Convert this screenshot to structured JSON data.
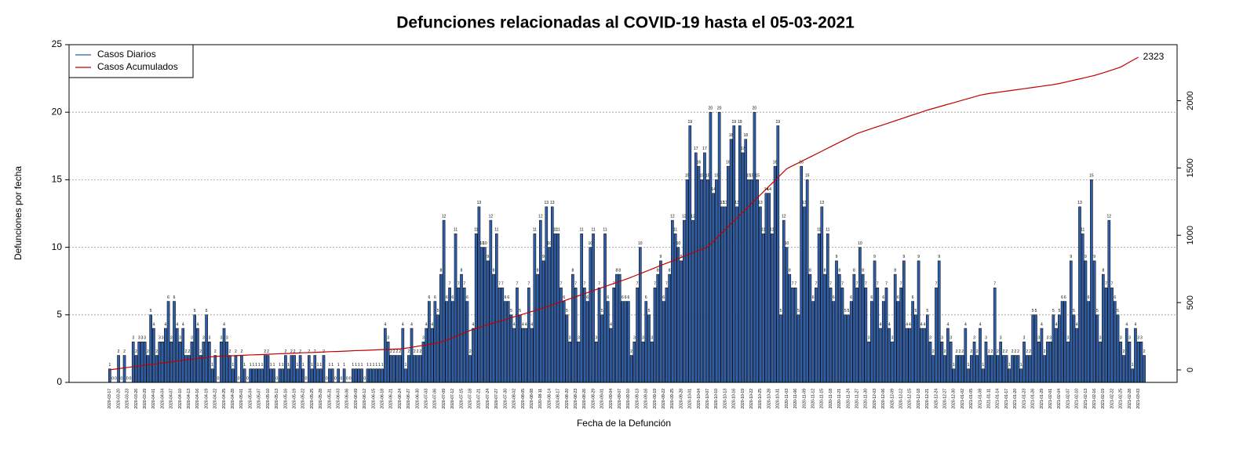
{
  "chart_data": {
    "type": "bar",
    "title": "Defunciones relacionadas al COVID-19 hasta el 05-03-2021",
    "x_label": "Fecha de la Defunción",
    "y_label": "Defunciones por fecha",
    "ylim": [
      0,
      25
    ],
    "yticks": [
      0,
      5,
      10,
      15,
      20,
      25
    ],
    "y2lim": [
      -93,
      2416
    ],
    "y2ticks": [
      0,
      500,
      1000,
      1500,
      2000
    ],
    "grid": true,
    "legend": "top-left",
    "categories": [
      "2020-03-17",
      null,
      null,
      "2020-03-20",
      null,
      null,
      "2020-03-23",
      null,
      null,
      "2020-03-26",
      null,
      null,
      "2020-03-29",
      null,
      null,
      "2020-04-01",
      null,
      null,
      "2020-04-04",
      null,
      null,
      "2020-04-07",
      null,
      null,
      "2020-04-10",
      null,
      null,
      "2020-04-13",
      null,
      null,
      "2020-04-16",
      null,
      null,
      "2020-04-19",
      null,
      null,
      "2020-04-22",
      null,
      null,
      "2020-04-25",
      null,
      null,
      "2020-04-28",
      null,
      null,
      "2020-05-01",
      null,
      null,
      "2020-05-04",
      null,
      null,
      "2020-05-07",
      null,
      null,
      "2020-05-10",
      null,
      null,
      "2020-05-13",
      null,
      null,
      "2020-05-16",
      null,
      null,
      "2020-05-19",
      null,
      null,
      "2020-05-22",
      null,
      null,
      "2020-05-25",
      null,
      null,
      "2020-05-28",
      null,
      null,
      "2020-05-31",
      null,
      null,
      "2020-06-03",
      null,
      null,
      "2020-06-06",
      null,
      null,
      "2020-06-09",
      null,
      null,
      "2020-06-12",
      null,
      null,
      "2020-06-15",
      null,
      null,
      "2020-06-18",
      null,
      null,
      "2020-06-21",
      null,
      null,
      "2020-06-24",
      null,
      null,
      "2020-06-27",
      null,
      null,
      "2020-06-30",
      null,
      null,
      "2020-07-03",
      null,
      null,
      "2020-07-06",
      null,
      null,
      "2020-07-09",
      null,
      null,
      "2020-07-12",
      null,
      null,
      "2020-07-15",
      null,
      null,
      "2020-07-18",
      null,
      null,
      "2020-07-21",
      null,
      null,
      "2020-07-24",
      null,
      null,
      "2020-07-27",
      null,
      null,
      "2020-07-30",
      null,
      null,
      "2020-08-02",
      null,
      null,
      "2020-08-05",
      null,
      null,
      "2020-08-08",
      null,
      null,
      "2020-08-11",
      null,
      null,
      "2020-08-14",
      null,
      null,
      "2020-08-17",
      null,
      null,
      "2020-08-20",
      null,
      null,
      "2020-08-23",
      null,
      null,
      "2020-08-26",
      null,
      null,
      "2020-08-29",
      null,
      null,
      "2020-09-01",
      null,
      null,
      "2020-09-04",
      null,
      null,
      "2020-09-07",
      null,
      null,
      "2020-09-10",
      null,
      null,
      "2020-09-13",
      null,
      null,
      "2020-09-16",
      null,
      null,
      "2020-09-19",
      null,
      null,
      "2020-09-22",
      null,
      null,
      "2020-09-25",
      null,
      null,
      "2020-09-28",
      null,
      null,
      "2020-10-01",
      null,
      null,
      "2020-10-04",
      null,
      null,
      "2020-10-07",
      null,
      null,
      "2020-10-10",
      null,
      null,
      "2020-10-13",
      null,
      null,
      "2020-10-16",
      null,
      null,
      "2020-10-19",
      null,
      null,
      "2020-10-22",
      null,
      null,
      "2020-10-25",
      null,
      null,
      "2020-10-28",
      null,
      null,
      "2020-10-31",
      null,
      null,
      "2020-11-03",
      null,
      null,
      "2020-11-06",
      null,
      null,
      "2020-11-09",
      null,
      null,
      "2020-11-12",
      null,
      null,
      "2020-11-15",
      null,
      null,
      "2020-11-18",
      null,
      null,
      "2020-11-21",
      null,
      null,
      "2020-11-24",
      null,
      null,
      "2020-11-27",
      null,
      null,
      "2020-11-30",
      null,
      null,
      "2020-12-03",
      null,
      null,
      "2020-12-06",
      null,
      null,
      "2020-12-09",
      null,
      null,
      "2020-12-12",
      null,
      null,
      "2020-12-15",
      null,
      null,
      "2020-12-18",
      null,
      null,
      "2020-12-21",
      null,
      null,
      "2020-12-24",
      null,
      null,
      "2020-12-27",
      null,
      null,
      "2020-12-30",
      null,
      null,
      "2021-01-02",
      null,
      null,
      "2021-01-05",
      null,
      null,
      "2021-01-08",
      null,
      null,
      "2021-01-11",
      null,
      null,
      "2021-01-14",
      null,
      null,
      "2021-01-17",
      null,
      null,
      "2021-01-20",
      null,
      null,
      "2021-01-23",
      null,
      null,
      "2021-01-26",
      null,
      null,
      "2021-01-29",
      null,
      null,
      "2021-02-01",
      null,
      null,
      "2021-02-04",
      null,
      null,
      "2021-02-07",
      null,
      null,
      "2021-02-10",
      null,
      null,
      "2021-02-13",
      null,
      null,
      "2021-02-16",
      null,
      null,
      "2021-02-19",
      null,
      null,
      "2021-02-22",
      null,
      null,
      "2021-02-25",
      null,
      null,
      "2021-02-28",
      null,
      null,
      "2021-03-03",
      null,
      null
    ],
    "series": [
      {
        "name": "Casos Diarios",
        "color": "#2f5ea8",
        "values": [
          1,
          0,
          0,
          2,
          0,
          2,
          0,
          0,
          3,
          2,
          3,
          3,
          3,
          2,
          5,
          4,
          2,
          3,
          3,
          4,
          6,
          3,
          6,
          4,
          3,
          4,
          2,
          2,
          3,
          5,
          4,
          2,
          3,
          5,
          3,
          1,
          2,
          0,
          3,
          4,
          3,
          2,
          1,
          2,
          0,
          2,
          1,
          0,
          1,
          1,
          1,
          1,
          1,
          2,
          2,
          1,
          1,
          0,
          1,
          1,
          2,
          1,
          2,
          2,
          1,
          2,
          1,
          0,
          2,
          1,
          2,
          1,
          1,
          2,
          0,
          1,
          1,
          0,
          1,
          0,
          1,
          0,
          0,
          1,
          1,
          1,
          1,
          0,
          1,
          1,
          1,
          1,
          1,
          1,
          4,
          3,
          2,
          2,
          2,
          2,
          4,
          1,
          2,
          4,
          2,
          2,
          2,
          3,
          4,
          6,
          4,
          6,
          5,
          8,
          12,
          6,
          7,
          6,
          11,
          7,
          8,
          7,
          6,
          2,
          4,
          11,
          13,
          10,
          10,
          9,
          12,
          8,
          11,
          7,
          7,
          6,
          6,
          5,
          4,
          7,
          5,
          4,
          4,
          7,
          4,
          11,
          8,
          12,
          9,
          13,
          10,
          13,
          11,
          11,
          7,
          6,
          5,
          3,
          8,
          7,
          3,
          11,
          7,
          6,
          10,
          11,
          3,
          7,
          5,
          11,
          6,
          4,
          7,
          8,
          8,
          6,
          6,
          6,
          2,
          3,
          7,
          10,
          3,
          6,
          5,
          3,
          7,
          8,
          9,
          6,
          7,
          8,
          12,
          11,
          10,
          9,
          12,
          15,
          19,
          12,
          17,
          16,
          15,
          17,
          15,
          20,
          14,
          15,
          20,
          13,
          13,
          16,
          18,
          19,
          13,
          19,
          17,
          18,
          15,
          15,
          20,
          15,
          13,
          11,
          14,
          14,
          11,
          16,
          19,
          5,
          12,
          10,
          8,
          7,
          7,
          5,
          16,
          13,
          15,
          8,
          6,
          7,
          11,
          13,
          8,
          11,
          7,
          6,
          9,
          8,
          7,
          5,
          5,
          6,
          8,
          7,
          10,
          8,
          7,
          3,
          6,
          9,
          7,
          4,
          6,
          7,
          4,
          3,
          8,
          6,
          7,
          9,
          4,
          4,
          6,
          5,
          9,
          4,
          4,
          5,
          3,
          2,
          7,
          9,
          3,
          2,
          4,
          3,
          1,
          2,
          2,
          2,
          4,
          1,
          2,
          3,
          2,
          4,
          1,
          3,
          2,
          2,
          7,
          2,
          3,
          2,
          2,
          1,
          2,
          2,
          2,
          1,
          3,
          2,
          2,
          5,
          5,
          3,
          4,
          2,
          3,
          3,
          5,
          4,
          5,
          6,
          6,
          3,
          9,
          5,
          4,
          13,
          11,
          9,
          6,
          15,
          9,
          5,
          3,
          8,
          7,
          12,
          7,
          6,
          5,
          3,
          2,
          4,
          3,
          1,
          4,
          3,
          3,
          2
        ]
      },
      {
        "name": "Casos Acumulados",
        "color": "#c00000",
        "axis": "y2",
        "x": [
          "2020-03-17",
          "2020-03-20",
          "2020-03-23",
          "2020-03-26",
          "2020-03-29",
          "2020-04-01",
          "2020-04-04",
          "2020-04-07",
          "2020-04-10",
          "2020-04-13",
          "2020-04-16",
          "2020-04-19",
          "2020-04-22",
          "2020-04-25",
          "2020-04-28",
          "2020-05-01",
          "2020-05-04",
          "2020-05-07",
          "2020-05-10",
          "2020-05-13",
          "2020-05-16",
          "2020-05-19",
          "2020-05-22",
          "2020-05-25",
          "2020-05-28",
          "2020-05-31",
          "2020-06-03",
          "2020-06-06",
          "2020-06-09",
          "2020-06-12",
          "2020-06-15",
          "2020-06-18",
          "2020-06-21",
          "2020-06-24",
          "2020-06-27",
          "2020-06-30",
          "2020-07-03",
          "2020-07-06",
          "2020-07-09",
          "2020-07-12",
          "2020-07-15",
          "2020-07-18",
          "2020-07-21",
          "2020-07-24",
          "2020-07-27",
          "2020-07-30",
          "2020-08-02",
          "2020-08-05",
          "2020-08-08",
          "2020-08-11",
          "2020-08-14",
          "2020-08-17",
          "2020-08-20",
          "2020-08-23",
          "2020-08-26",
          "2020-08-29",
          "2020-09-01",
          "2020-09-04",
          "2020-09-07",
          "2020-09-10",
          "2020-09-13",
          "2020-09-16",
          "2020-09-19",
          "2020-09-22",
          "2020-09-25",
          "2020-09-28",
          "2020-10-01",
          "2020-10-04",
          "2020-10-07",
          "2020-10-10",
          "2020-10-13",
          "2020-10-16",
          "2020-10-19",
          "2020-10-22",
          "2020-10-25",
          "2020-10-28",
          "2020-10-31",
          "2020-11-03",
          "2020-11-06",
          "2020-11-09",
          "2020-11-12",
          "2020-11-15",
          "2020-11-18",
          "2020-11-21",
          "2020-11-24",
          "2020-11-27",
          "2020-11-30",
          "2020-12-03",
          "2020-12-06",
          "2020-12-09",
          "2020-12-12",
          "2020-12-15",
          "2020-12-18",
          "2020-12-21",
          "2020-12-24",
          "2020-12-27",
          "2020-12-30",
          "2021-01-02",
          "2021-01-05",
          "2021-01-08",
          "2021-01-11",
          "2021-01-14",
          "2021-01-17",
          "2021-01-20",
          "2021-01-23",
          "2021-01-26",
          "2021-01-29",
          "2021-02-01",
          "2021-02-04",
          "2021-02-07",
          "2021-02-10",
          "2021-02-13",
          "2021-02-16",
          "2021-02-19",
          "2021-02-22",
          "2021-02-25",
          "2021-02-28",
          "2021-03-03"
        ],
        "values": [
          1,
          9,
          18,
          26,
          35,
          43,
          51,
          60,
          68,
          77,
          85,
          93,
          100,
          103,
          105,
          108,
          111,
          113,
          116,
          119,
          121,
          124,
          127,
          129,
          132,
          135,
          137,
          140,
          143,
          145,
          148,
          151,
          153,
          156,
          164,
          175,
          185,
          196,
          212,
          239,
          266,
          293,
          315,
          335,
          355,
          374,
          394,
          414,
          434,
          453,
          475,
          498,
          521,
          543,
          566,
          589,
          612,
          634,
          657,
          680,
          706,
          732,
          758,
          784,
          809,
          835,
          861,
          887,
          913,
          978,
          1042,
          1107,
          1171,
          1236,
          1300,
          1365,
          1429,
          1494,
          1527,
          1560,
          1592,
          1625,
          1658,
          1691,
          1723,
          1756,
          1778,
          1800,
          1821,
          1843,
          1865,
          1887,
          1908,
          1930,
          1948,
          1967,
          1985,
          2004,
          2022,
          2041,
          2053,
          2062,
          2071,
          2080,
          2089,
          2098,
          2107,
          2116,
          2127,
          2142,
          2157,
          2172,
          2187,
          2207,
          2228,
          2250,
          2287,
          2323
        ]
      }
    ]
  }
}
